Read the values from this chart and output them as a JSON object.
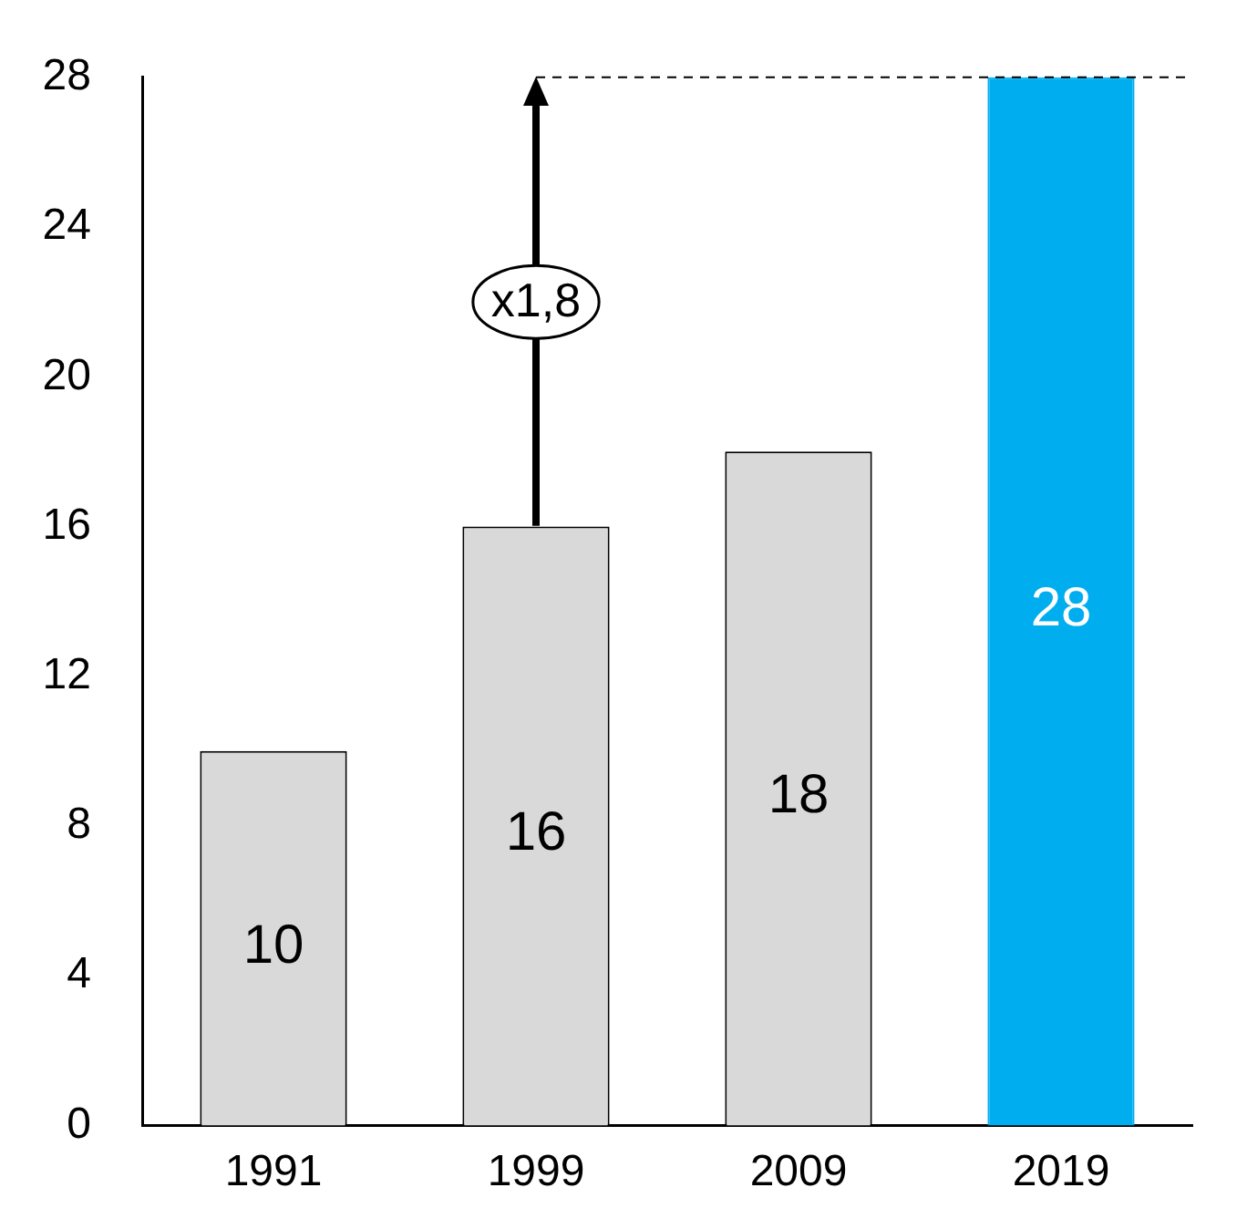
{
  "chart_data": {
    "type": "bar",
    "categories": [
      "1991",
      "1999",
      "2009",
      "2019"
    ],
    "values": [
      10,
      16,
      18,
      28
    ],
    "colors": [
      "#d9d9d9",
      "#d9d9d9",
      "#d9d9d9",
      "#00aeef"
    ],
    "ylim": [
      0,
      28
    ],
    "yticks": [
      0,
      4,
      8,
      12,
      16,
      20,
      24,
      28
    ],
    "grid": false,
    "legend": false,
    "data_labels": true,
    "ref_lines": [
      {
        "axis": "y",
        "value": 28,
        "line_style": "dashed",
        "color": "#000000"
      }
    ],
    "annotations": [
      "x1,8"
    ]
  }
}
